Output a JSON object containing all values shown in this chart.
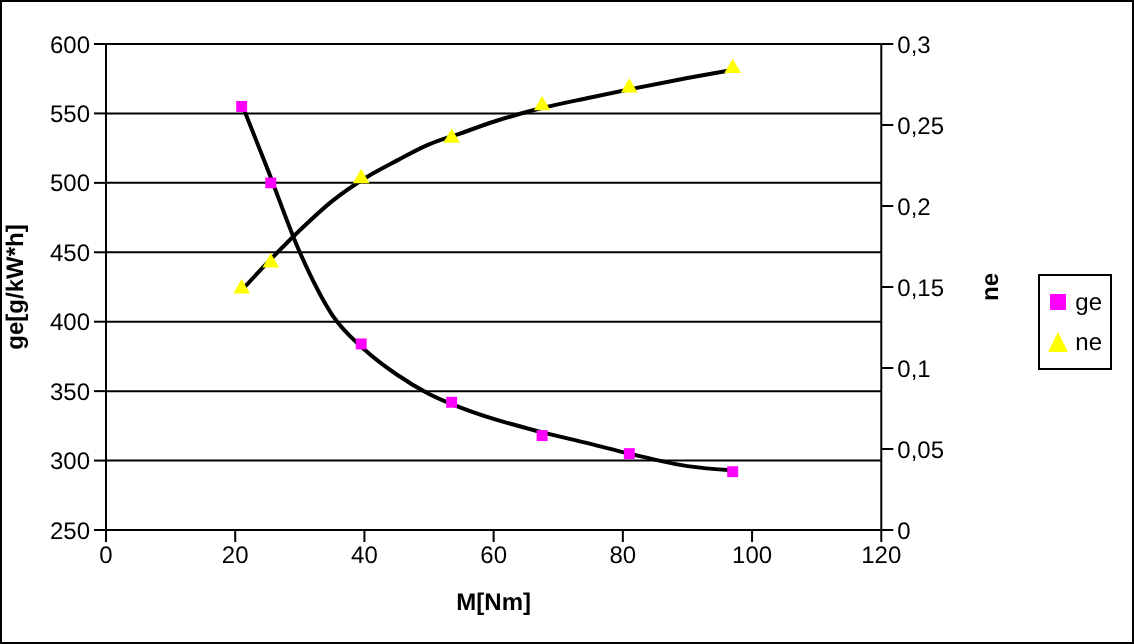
{
  "chart_data": {
    "type": "scatter",
    "xlabel": "M[Nm]",
    "ylabel": "ge[g/kW*h]",
    "y2label": "ne",
    "xlim": [
      0,
      120
    ],
    "xticks": [
      0,
      20,
      40,
      60,
      80,
      100,
      120
    ],
    "ylim": [
      250,
      600
    ],
    "yticks": [
      250,
      300,
      350,
      400,
      450,
      500,
      550,
      600
    ],
    "y2lim": [
      0,
      0.3
    ],
    "y2ticks": [
      {
        "value": 0,
        "label": "0"
      },
      {
        "value": 0.05,
        "label": "0,05"
      },
      {
        "value": 0.1,
        "label": "0,1"
      },
      {
        "value": 0.15,
        "label": "0,15"
      },
      {
        "value": 0.2,
        "label": "0,2"
      },
      {
        "value": 0.25,
        "label": "0,25"
      },
      {
        "value": 0.3,
        "label": "0,3"
      }
    ],
    "grid": "y",
    "legend": "right",
    "series": [
      {
        "name": "ge",
        "marker": "square",
        "color": "#ff00ff",
        "x": [
          21,
          25.5,
          39.5,
          53.5,
          67.5,
          81,
          97
        ],
        "values": [
          555,
          500,
          384,
          342,
          318,
          305,
          292
        ]
      },
      {
        "name": "ne",
        "marker": "triangle",
        "color": "#ffff00",
        "axis": "y2",
        "x": [
          21,
          25.5,
          39.5,
          53.5,
          67.5,
          81,
          97
        ],
        "values": [
          0.149,
          0.165,
          0.217,
          0.242,
          0.262,
          0.273,
          0.285
        ]
      },
      {
        "type": "line",
        "color": "#000000",
        "x": [
          21,
          25,
          30,
          35,
          40,
          45,
          50,
          55,
          60,
          67,
          75,
          81,
          90,
          97
        ],
        "values": [
          557,
          510,
          450,
          405,
          380,
          362,
          348,
          338,
          330,
          321,
          312,
          305,
          296,
          293
        ]
      },
      {
        "type": "line",
        "color": "#000000",
        "axis": "y2",
        "x": [
          21,
          25,
          30,
          35,
          40,
          45,
          50,
          55,
          60,
          67,
          75,
          81,
          90,
          97
        ],
        "values": [
          0.148,
          0.165,
          0.185,
          0.203,
          0.217,
          0.228,
          0.238,
          0.245,
          0.252,
          0.26,
          0.267,
          0.272,
          0.279,
          0.284
        ]
      }
    ]
  }
}
